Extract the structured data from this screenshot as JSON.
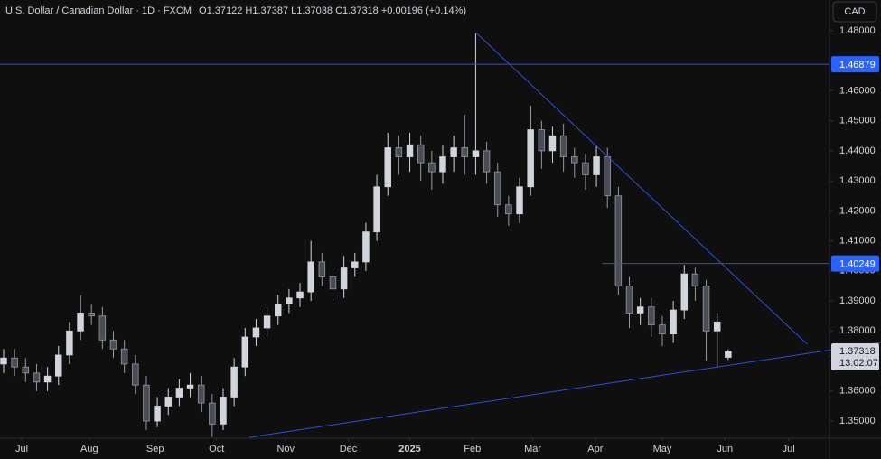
{
  "chart_data": {
    "type": "candlestick",
    "title": "U.S. Dollar / Canadian Dollar · 1D · FXCM",
    "legend_text": "O1.37122 H1.37387 L1.37038 C1.37318 +0.00196 (+0.14%)",
    "currency": "CAD",
    "countdown": "13:02:07",
    "up_color": "#d1d4dc",
    "down_color": "#4a4d57",
    "line_color": "#2b50d6",
    "grid": false,
    "open": [
      1.369,
      1.371,
      1.368,
      1.366,
      1.363,
      1.365,
      1.372,
      1.38,
      1.386,
      1.385,
      1.377,
      1.374,
      1.369,
      1.362,
      1.35,
      1.355,
      1.358,
      1.361,
      1.362,
      1.356,
      1.349,
      1.358,
      1.368,
      1.378,
      1.381,
      1.385,
      1.389,
      1.391,
      1.393,
      1.403,
      1.398,
      1.394,
      1.401,
      1.403,
      1.413,
      1.428,
      1.441,
      1.438,
      1.442,
      1.436,
      1.433,
      1.438,
      1.441,
      1.438,
      1.44,
      1.433,
      1.422,
      1.419,
      1.428,
      1.447,
      1.44,
      1.445,
      1.438,
      1.436,
      1.432,
      1.438,
      1.425,
      1.395,
      1.386,
      1.388,
      1.382,
      1.379,
      1.387,
      1.399,
      1.395,
      1.38,
      1.37122
    ],
    "high": [
      1.374,
      1.374,
      1.371,
      1.369,
      1.368,
      1.375,
      1.383,
      1.392,
      1.389,
      1.388,
      1.38,
      1.377,
      1.372,
      1.365,
      1.358,
      1.361,
      1.364,
      1.366,
      1.365,
      1.359,
      1.361,
      1.371,
      1.381,
      1.384,
      1.388,
      1.392,
      1.394,
      1.396,
      1.41,
      1.406,
      1.401,
      1.405,
      1.406,
      1.416,
      1.432,
      1.446,
      1.445,
      1.446,
      1.445,
      1.44,
      1.442,
      1.445,
      1.452,
      1.479,
      1.443,
      1.436,
      1.425,
      1.431,
      1.455,
      1.45,
      1.448,
      1.449,
      1.441,
      1.439,
      1.442,
      1.441,
      1.428,
      1.398,
      1.391,
      1.391,
      1.385,
      1.39,
      1.402,
      1.401,
      1.397,
      1.386,
      1.37387
    ],
    "low": [
      1.366,
      1.365,
      1.363,
      1.36,
      1.36,
      1.362,
      1.369,
      1.377,
      1.382,
      1.374,
      1.371,
      1.366,
      1.359,
      1.347,
      1.348,
      1.352,
      1.355,
      1.358,
      1.353,
      1.3447,
      1.347,
      1.355,
      1.365,
      1.375,
      1.378,
      1.382,
      1.386,
      1.388,
      1.39,
      1.395,
      1.39,
      1.391,
      1.398,
      1.4,
      1.41,
      1.425,
      1.432,
      1.433,
      1.43,
      1.427,
      1.429,
      1.433,
      1.432,
      1.432,
      1.429,
      1.418,
      1.415,
      1.416,
      1.425,
      1.434,
      1.436,
      1.433,
      1.431,
      1.427,
      1.428,
      1.421,
      1.392,
      1.381,
      1.382,
      1.378,
      1.375,
      1.376,
      1.384,
      1.39,
      1.37,
      1.368,
      1.37038
    ],
    "close": [
      1.371,
      1.368,
      1.366,
      1.363,
      1.365,
      1.372,
      1.38,
      1.386,
      1.385,
      1.377,
      1.374,
      1.369,
      1.362,
      1.35,
      1.355,
      1.358,
      1.361,
      1.362,
      1.356,
      1.349,
      1.358,
      1.368,
      1.378,
      1.381,
      1.385,
      1.389,
      1.391,
      1.393,
      1.403,
      1.398,
      1.394,
      1.401,
      1.403,
      1.413,
      1.428,
      1.441,
      1.438,
      1.442,
      1.436,
      1.433,
      1.438,
      1.441,
      1.438,
      1.44,
      1.433,
      1.422,
      1.419,
      1.428,
      1.447,
      1.44,
      1.445,
      1.438,
      1.436,
      1.432,
      1.438,
      1.425,
      1.395,
      1.386,
      1.388,
      1.382,
      1.379,
      1.387,
      1.399,
      1.395,
      1.38,
      1.383,
      1.37318
    ],
    "levels": [
      {
        "value": 1.46879
      },
      {
        "value": 1.40249,
        "from": 54.5
      }
    ],
    "trendlines": [
      {
        "x": [
          43,
          73.2
        ],
        "y": [
          1.4794,
          1.3756
        ]
      },
      {
        "x": [
          22.4,
          79.9
        ],
        "y": [
          1.3446,
          1.3762
        ]
      }
    ],
    "xlim": [
      -0.33,
      75.23
    ],
    "ylim": [
      1.3443,
      1.4902
    ],
    "xticks": [
      {
        "value": 1.65,
        "label": "Jul"
      },
      {
        "value": 7.8,
        "label": "Aug"
      },
      {
        "value": 13.8,
        "label": "Sep"
      },
      {
        "value": 19.4,
        "label": "Oct"
      },
      {
        "value": 25.7,
        "label": "Nov"
      },
      {
        "value": 31.4,
        "label": "Dec"
      },
      {
        "value": 37.0,
        "label": "2025"
      },
      {
        "value": 42.7,
        "label": "Feb"
      },
      {
        "value": 48.2,
        "label": "Mar"
      },
      {
        "value": 53.9,
        "label": "Apr"
      },
      {
        "value": 60.0,
        "label": "May"
      },
      {
        "value": 65.7,
        "label": "Jun"
      },
      {
        "value": 71.5,
        "label": "Jul"
      }
    ],
    "yticks": [
      {
        "value": 1.35,
        "label": "1.35000"
      },
      {
        "value": 1.36,
        "label": "1.36000"
      },
      {
        "value": 1.37,
        "label": "1.37000"
      },
      {
        "value": 1.38,
        "label": "1.38000"
      },
      {
        "value": 1.39,
        "label": "1.39000"
      },
      {
        "value": 1.4,
        "label": "1.40000"
      },
      {
        "value": 1.41,
        "label": "1.41000"
      },
      {
        "value": 1.42,
        "label": "1.42000"
      },
      {
        "value": 1.43,
        "label": "1.43000"
      },
      {
        "value": 1.44,
        "label": "1.44000"
      },
      {
        "value": 1.45,
        "label": "1.45000"
      },
      {
        "value": 1.46,
        "label": "1.46000"
      },
      {
        "value": 1.47,
        "label": "1.47000"
      },
      {
        "value": 1.48,
        "label": "1.48000"
      }
    ]
  }
}
